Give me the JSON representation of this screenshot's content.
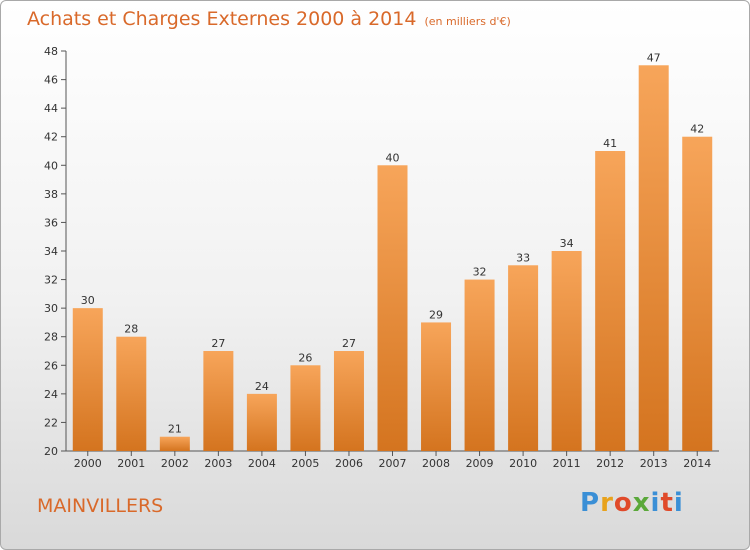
{
  "header": {
    "title": "Achats et Charges Externes 2000 à 2014",
    "unit": "(en milliers d'€)"
  },
  "footer": {
    "commune": "MAINVILLERS",
    "brand": "Proxiti"
  },
  "colors": {
    "accent": "#d9692a",
    "bar_light": "#f7a55a",
    "bar_dark": "#d4741f"
  },
  "chart_data": {
    "type": "bar",
    "title": "Achats et Charges Externes 2000 à 2014",
    "subtitle": "(en milliers d'€)",
    "categories": [
      "2000",
      "2001",
      "2002",
      "2003",
      "2004",
      "2005",
      "2006",
      "2007",
      "2008",
      "2009",
      "2010",
      "2011",
      "2012",
      "2013",
      "2014"
    ],
    "values": [
      30,
      28,
      21,
      27,
      24,
      26,
      27,
      40,
      29,
      32,
      33,
      34,
      41,
      47,
      42
    ],
    "ylim": [
      20,
      48
    ],
    "yticks": [
      20,
      22,
      24,
      26,
      28,
      30,
      32,
      34,
      36,
      38,
      40,
      42,
      44,
      46,
      48
    ],
    "grid": false,
    "data_labels": true
  }
}
